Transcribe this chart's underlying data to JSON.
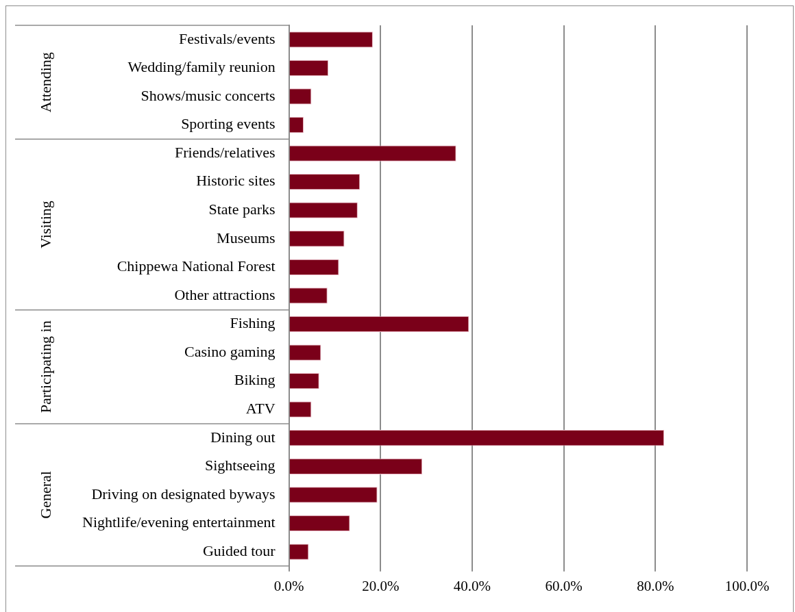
{
  "chart_data": {
    "type": "bar",
    "orientation": "horizontal",
    "categories": [
      "Festivals/events",
      "Wedding/family reunion",
      "Shows/music concerts",
      "Sporting events",
      "Friends/relatives",
      "Historic sites",
      "State parks",
      "Museums",
      "Chippewa National Forest",
      "Other attractions",
      "Fishing",
      "Casino gaming",
      "Biking",
      "ATV",
      "Dining out",
      "Sightseeing",
      "Driving on designated byways",
      "Nightlife/evening entertainment",
      "Guided tour"
    ],
    "values": [
      18.3,
      8.6,
      4.9,
      3.2,
      36.5,
      15.5,
      15.0,
      12.1,
      10.9,
      8.4,
      39.3,
      7.0,
      6.6,
      4.9,
      81.9,
      29.1,
      19.3,
      13.3,
      4.3
    ],
    "color": "#7a0019",
    "xlim": [
      0,
      100
    ],
    "xticks": [
      {
        "value": 0,
        "label": "0.0%"
      },
      {
        "value": 20,
        "label": "20.0%"
      },
      {
        "value": 40,
        "label": "40.0%"
      },
      {
        "value": 60,
        "label": "60.0%"
      },
      {
        "value": 80,
        "label": "80.0%"
      },
      {
        "value": 100,
        "label": "100.0%"
      }
    ],
    "grid": "x",
    "legend": false,
    "annotations": [
      "Attending",
      "Visiting",
      "Participating in",
      "General"
    ]
  }
}
